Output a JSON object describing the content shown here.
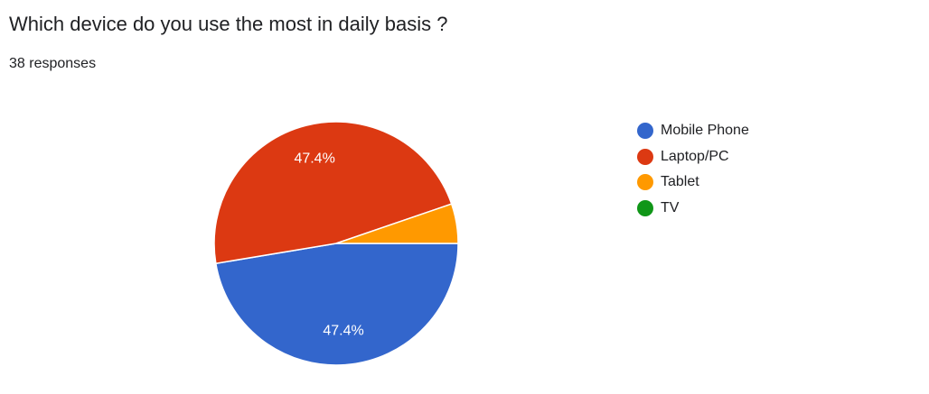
{
  "header": {
    "title": "Which device do you use the most in daily basis ?",
    "responses": "38 responses"
  },
  "chart_data": {
    "type": "pie",
    "title": "Which device do you use the most in daily basis ?",
    "categories": [
      "Mobile Phone",
      "Laptop/PC",
      "Tablet",
      "TV"
    ],
    "values": [
      18,
      18,
      2,
      0
    ],
    "percent_labels": [
      "47.4%",
      "47.4%",
      "",
      ""
    ],
    "colors": [
      "#3366cc",
      "#dc3912",
      "#ff9900",
      "#109618"
    ],
    "legend_position": "right",
    "start_angle_deg": 90,
    "direction": "clockwise"
  }
}
